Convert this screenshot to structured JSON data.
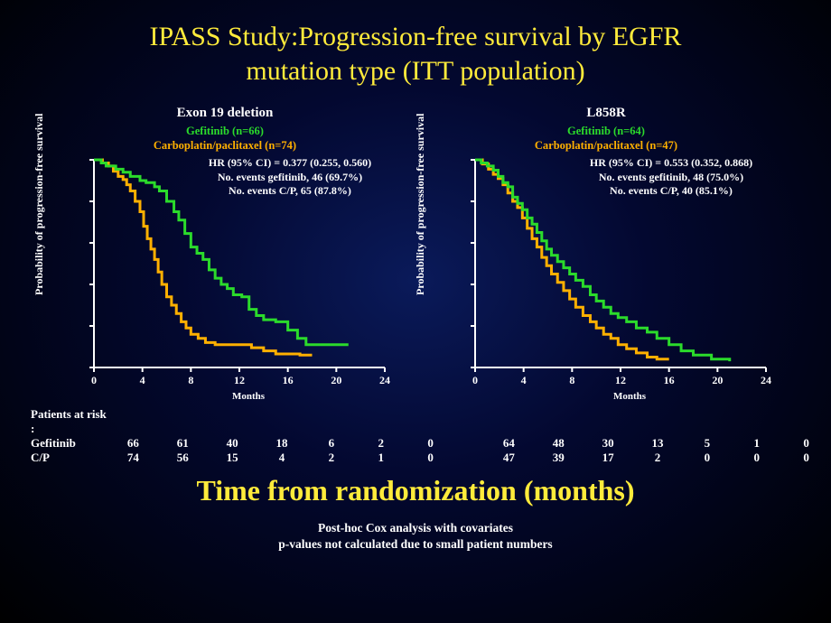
{
  "title_line1": "IPASS Study:Progression-free survival by EGFR",
  "title_line2": "mutation type (ITT population)",
  "bottom_title": "Time from randomization (months)",
  "footnote_line1": "Post-hoc Cox analysis with covariates",
  "footnote_line2": "p-values not calculated due to small patient numbers",
  "risk_header": "Patients at risk :",
  "risk_gef_label": "Gefitinib",
  "risk_cp_label": "C/P",
  "ylabel": "Probability  of progression-free  survival",
  "xlabel": "Months",
  "colors": {
    "gefitinib": "#2bdb2b",
    "cp": "#ffb000",
    "axis": "#ffffff",
    "title": "#ffeb3b",
    "text": "#ffffff"
  },
  "axis": {
    "xlim": [
      0,
      24
    ],
    "xticks": [
      0,
      4,
      8,
      12,
      16,
      20,
      24
    ],
    "ylim": [
      0,
      1.0
    ],
    "yticks": [
      0.0,
      0.2,
      0.4,
      0.6,
      0.8,
      1.0
    ],
    "line_width": 3,
    "tick_fontsize": 12
  },
  "left": {
    "panel_title": "Exon 19 deletion",
    "legend_gef": "Gefitinib  (n=66)",
    "legend_cp": "Carboplatin/paclitaxel  (n=74)",
    "hr_line": "HR (95% CI) = 0.377 (0.255, 0.560)",
    "ev_gef": "No. events gefitinib,  46 (69.7%)",
    "ev_cp": "No. events C/P,  65 (87.8%)",
    "risk_gef": [
      "66",
      "61",
      "40",
      "18",
      "6",
      "2",
      "0"
    ],
    "risk_cp": [
      "74",
      "56",
      "15",
      "4",
      "2",
      "1",
      "0"
    ],
    "gefitinib_points": [
      [
        0,
        1.0
      ],
      [
        0.6,
        0.985
      ],
      [
        1.0,
        0.97
      ],
      [
        1.8,
        0.955
      ],
      [
        2.4,
        0.94
      ],
      [
        3.0,
        0.92
      ],
      [
        3.8,
        0.9
      ],
      [
        4.3,
        0.89
      ],
      [
        5.0,
        0.87
      ],
      [
        5.4,
        0.85
      ],
      [
        6.0,
        0.8
      ],
      [
        6.6,
        0.75
      ],
      [
        7.0,
        0.71
      ],
      [
        7.5,
        0.645
      ],
      [
        8.0,
        0.58
      ],
      [
        8.5,
        0.55
      ],
      [
        9.0,
        0.52
      ],
      [
        9.5,
        0.47
      ],
      [
        10.0,
        0.43
      ],
      [
        10.5,
        0.4
      ],
      [
        11.0,
        0.38
      ],
      [
        11.5,
        0.35
      ],
      [
        12.2,
        0.34
      ],
      [
        12.8,
        0.28
      ],
      [
        13.4,
        0.25
      ],
      [
        14.0,
        0.23
      ],
      [
        15.0,
        0.22
      ],
      [
        16.0,
        0.18
      ],
      [
        16.8,
        0.14
      ],
      [
        17.5,
        0.11
      ],
      [
        21.0,
        0.11
      ]
    ],
    "cp_points": [
      [
        0,
        1.0
      ],
      [
        0.7,
        0.985
      ],
      [
        1.2,
        0.97
      ],
      [
        1.6,
        0.945
      ],
      [
        2.0,
        0.92
      ],
      [
        2.4,
        0.905
      ],
      [
        2.7,
        0.88
      ],
      [
        3.0,
        0.85
      ],
      [
        3.4,
        0.8
      ],
      [
        3.8,
        0.75
      ],
      [
        4.1,
        0.68
      ],
      [
        4.4,
        0.62
      ],
      [
        4.7,
        0.57
      ],
      [
        5.0,
        0.52
      ],
      [
        5.3,
        0.46
      ],
      [
        5.6,
        0.4
      ],
      [
        6.0,
        0.34
      ],
      [
        6.4,
        0.3
      ],
      [
        6.8,
        0.26
      ],
      [
        7.2,
        0.22
      ],
      [
        7.6,
        0.19
      ],
      [
        8.0,
        0.16
      ],
      [
        8.6,
        0.14
      ],
      [
        9.2,
        0.12
      ],
      [
        10.0,
        0.11
      ],
      [
        11.0,
        0.11
      ],
      [
        12.0,
        0.11
      ],
      [
        13.0,
        0.095
      ],
      [
        14.0,
        0.08
      ],
      [
        15.0,
        0.065
      ],
      [
        17.0,
        0.06
      ],
      [
        18.0,
        0.06
      ]
    ]
  },
  "right": {
    "panel_title": "L858R",
    "legend_gef": "Gefitinib  (n=64)",
    "legend_cp": "Carboplatin/paclitaxel  (n=47)",
    "hr_line": "HR (95% CI) = 0.553 (0.352, 0.868)",
    "ev_gef": "No. events gefitinib, 48 (75.0%)",
    "ev_cp": "No. events C/P, 40 (85.1%)",
    "risk_gef": [
      "64",
      "48",
      "30",
      "13",
      "5",
      "1",
      "0"
    ],
    "risk_cp": [
      "47",
      "39",
      "17",
      "2",
      "0",
      "0",
      "0"
    ],
    "gefitinib_points": [
      [
        0,
        1.0
      ],
      [
        0.5,
        0.985
      ],
      [
        1.0,
        0.97
      ],
      [
        1.5,
        0.95
      ],
      [
        1.9,
        0.92
      ],
      [
        2.3,
        0.89
      ],
      [
        2.7,
        0.87
      ],
      [
        3.1,
        0.82
      ],
      [
        3.5,
        0.79
      ],
      [
        3.9,
        0.76
      ],
      [
        4.3,
        0.72
      ],
      [
        4.7,
        0.69
      ],
      [
        5.1,
        0.65
      ],
      [
        5.5,
        0.61
      ],
      [
        5.9,
        0.57
      ],
      [
        6.3,
        0.54
      ],
      [
        6.8,
        0.51
      ],
      [
        7.3,
        0.48
      ],
      [
        7.8,
        0.45
      ],
      [
        8.3,
        0.42
      ],
      [
        8.9,
        0.39
      ],
      [
        9.5,
        0.35
      ],
      [
        10.0,
        0.32
      ],
      [
        10.6,
        0.29
      ],
      [
        11.2,
        0.26
      ],
      [
        11.8,
        0.24
      ],
      [
        12.5,
        0.22
      ],
      [
        13.3,
        0.19
      ],
      [
        14.2,
        0.17
      ],
      [
        15.0,
        0.14
      ],
      [
        16.0,
        0.11
      ],
      [
        17.0,
        0.08
      ],
      [
        18.0,
        0.06
      ],
      [
        19.5,
        0.04
      ],
      [
        21.0,
        0.03
      ]
    ],
    "cp_points": [
      [
        0,
        1.0
      ],
      [
        0.6,
        0.98
      ],
      [
        1.1,
        0.955
      ],
      [
        1.5,
        0.93
      ],
      [
        1.9,
        0.91
      ],
      [
        2.3,
        0.88
      ],
      [
        2.7,
        0.84
      ],
      [
        3.1,
        0.8
      ],
      [
        3.5,
        0.77
      ],
      [
        3.9,
        0.72
      ],
      [
        4.3,
        0.67
      ],
      [
        4.7,
        0.62
      ],
      [
        5.1,
        0.58
      ],
      [
        5.5,
        0.53
      ],
      [
        5.9,
        0.49
      ],
      [
        6.3,
        0.45
      ],
      [
        6.8,
        0.41
      ],
      [
        7.3,
        0.37
      ],
      [
        7.8,
        0.33
      ],
      [
        8.3,
        0.29
      ],
      [
        8.9,
        0.25
      ],
      [
        9.5,
        0.22
      ],
      [
        10.0,
        0.19
      ],
      [
        10.6,
        0.16
      ],
      [
        11.2,
        0.14
      ],
      [
        11.8,
        0.11
      ],
      [
        12.5,
        0.09
      ],
      [
        13.3,
        0.07
      ],
      [
        14.2,
        0.05
      ],
      [
        15.0,
        0.04
      ],
      [
        16.0,
        0.04
      ]
    ]
  }
}
